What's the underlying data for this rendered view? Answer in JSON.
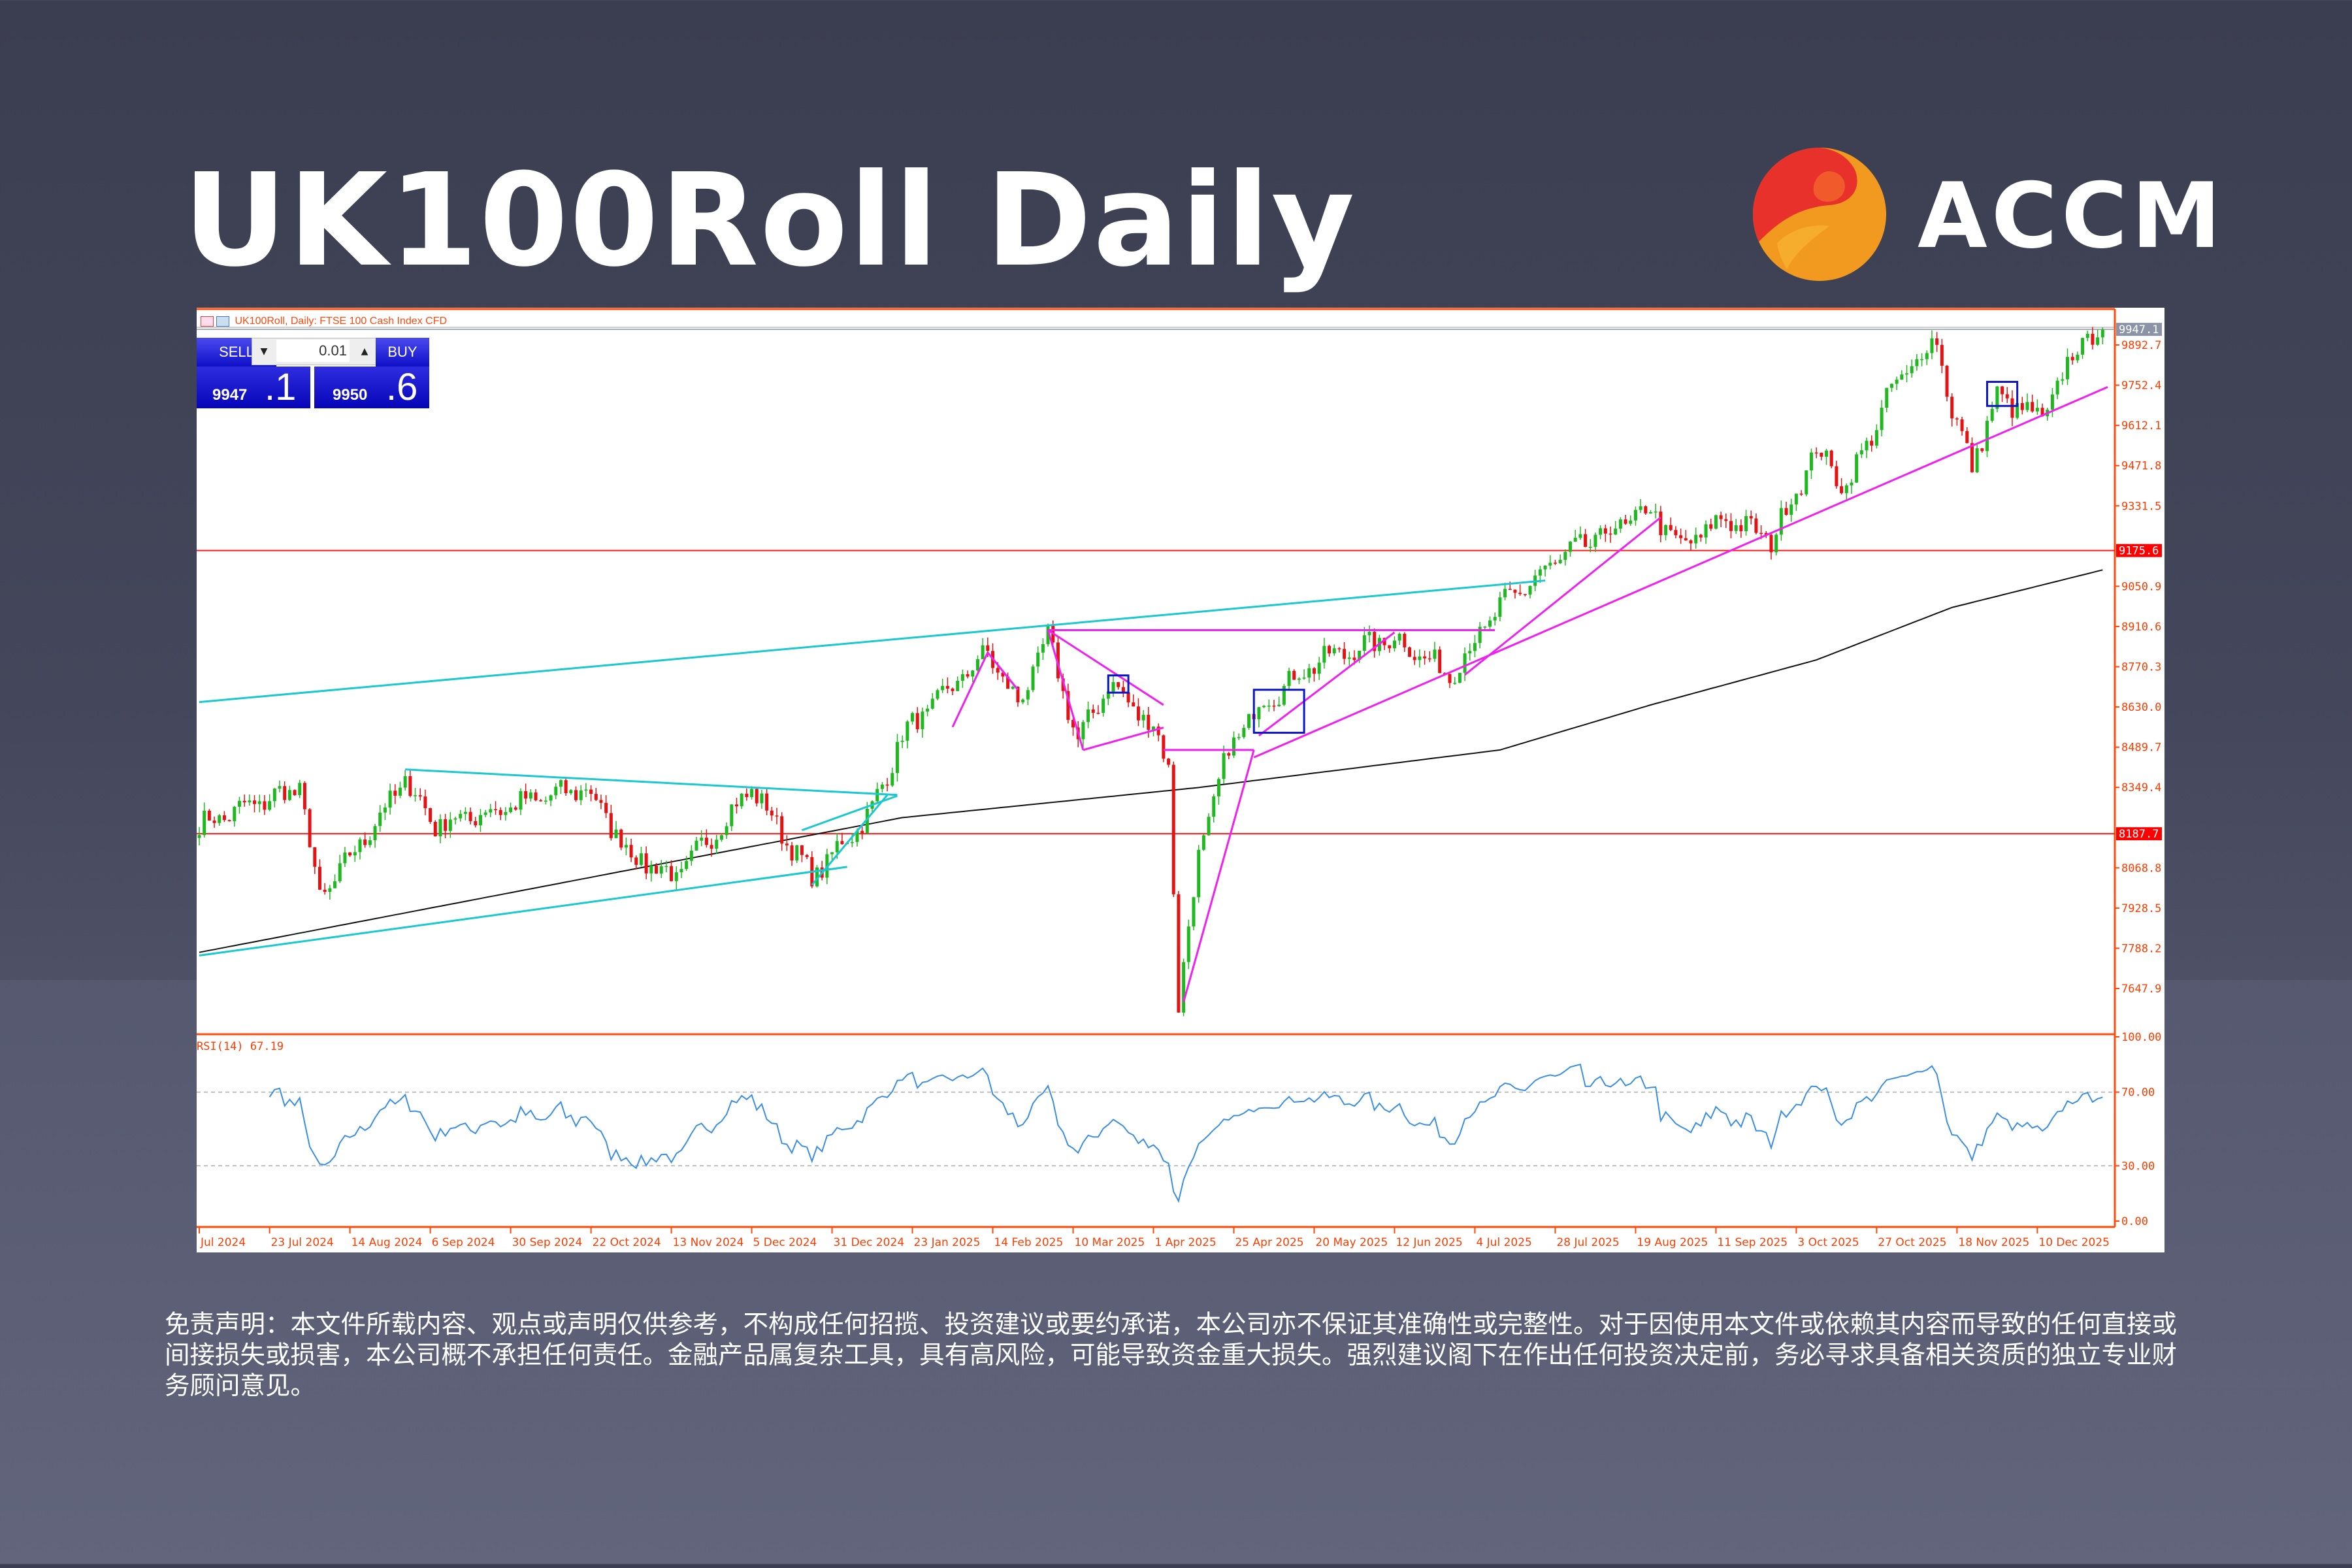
{
  "header": {
    "title": "UK100Roll Daily",
    "brand": "ACCM"
  },
  "chart_header": {
    "caption": "UK100Roll, Daily:  FTSE 100 Cash Index CFD"
  },
  "trade_panel": {
    "sell_label": "SELL",
    "buy_label": "BUY",
    "lot_value": "0.01",
    "bid_main": "9947",
    "bid_frac": ".1",
    "ask_main": "9950",
    "ask_frac": ".6"
  },
  "colors": {
    "up": "#1fb81f",
    "down": "#e41212",
    "ma": "#111111",
    "cyan": "#19c8d0",
    "magenta": "#f020f0",
    "hline": "#ff1a1a",
    "rsi": "#3a8ee6",
    "axis": "#ff4a0a"
  },
  "chart_data": [
    {
      "type": "candlestick",
      "title": "UK100Roll, Daily",
      "bars": 380,
      "ylim": [
        7577.6,
        10033
      ],
      "y_ticks": [
        "9892.7",
        "9752.4",
        "9612.1",
        "9471.8",
        "9331.5",
        "9050.9",
        "8910.6",
        "8770.3",
        "8630.0",
        "8489.7",
        "8349.4",
        "8068.8",
        "7928.5",
        "7788.2",
        "7647.9"
      ],
      "current_price_label": "9947.1",
      "current_price": 9947.1,
      "hlines": [
        {
          "price": 9175.6,
          "label": "9175.6"
        },
        {
          "price": 8187.7,
          "label": "8187.7"
        }
      ],
      "close_path": [
        [
          0,
          8218
        ],
        [
          20,
          8349
        ],
        [
          24,
          7956
        ],
        [
          41,
          8375
        ],
        [
          47,
          8218
        ],
        [
          77,
          8349
        ],
        [
          86,
          8113
        ],
        [
          95,
          8035
        ],
        [
          110,
          8349
        ],
        [
          122,
          8035
        ],
        [
          134,
          8270
        ],
        [
          140,
          8532
        ],
        [
          157,
          8820
        ],
        [
          163,
          8637
        ],
        [
          169,
          8872
        ],
        [
          175,
          8506
        ],
        [
          181,
          8715
        ],
        [
          190,
          8558
        ],
        [
          193,
          8427
        ],
        [
          195,
          7590
        ],
        [
          199,
          8113
        ],
        [
          205,
          8480
        ],
        [
          211,
          8637
        ],
        [
          223,
          8794
        ],
        [
          238,
          8872
        ],
        [
          249,
          8742
        ],
        [
          259,
          8977
        ],
        [
          271,
          9150
        ],
        [
          289,
          9317
        ],
        [
          295,
          9186
        ],
        [
          304,
          9291
        ],
        [
          313,
          9212
        ],
        [
          322,
          9527
        ],
        [
          328,
          9396
        ],
        [
          337,
          9736
        ],
        [
          346,
          9919
        ],
        [
          349,
          9657
        ],
        [
          353,
          9474
        ],
        [
          358,
          9710
        ],
        [
          367,
          9631
        ],
        [
          374,
          9893
        ],
        [
          379,
          9945
        ]
      ],
      "moving_average": {
        "name": "MA",
        "points": [
          [
            0,
            7774
          ],
          [
            140,
            8244
          ],
          [
            199,
            8349
          ],
          [
            259,
            8480
          ],
          [
            289,
            8637
          ],
          [
            322,
            8794
          ],
          [
            349,
            8977
          ],
          [
            379,
            9108
          ]
        ]
      },
      "trendlines": [
        {
          "color": "cyan",
          "from": [
            0,
            8647
          ],
          "to": [
            268,
            9071
          ]
        },
        {
          "color": "cyan",
          "from": [
            0,
            7763
          ],
          "to": [
            129,
            8072
          ]
        },
        {
          "color": "cyan",
          "from": [
            41,
            8412
          ],
          "to": [
            139,
            8323
          ]
        },
        {
          "color": "cyan",
          "from": [
            122,
            8009
          ],
          "to": [
            137,
            8323
          ]
        },
        {
          "color": "cyan",
          "from": [
            120,
            8200
          ],
          "to": [
            139,
            8320
          ]
        },
        {
          "color": "magenta",
          "from": [
            169,
            8898
          ],
          "to": [
            258,
            8898
          ]
        },
        {
          "color": "magenta",
          "from": [
            192,
            8480
          ],
          "to": [
            210,
            8480
          ]
        },
        {
          "color": "magenta",
          "from": [
            196,
            7601
          ],
          "to": [
            210,
            8480
          ]
        },
        {
          "color": "magenta",
          "from": [
            210,
            8454
          ],
          "to": [
            380,
            9746
          ]
        },
        {
          "color": "magenta",
          "from": [
            169,
            8898
          ],
          "to": [
            192,
            8637
          ]
        },
        {
          "color": "magenta",
          "from": [
            169,
            8898
          ],
          "to": [
            176,
            8480
          ]
        },
        {
          "color": "magenta",
          "from": [
            176,
            8480
          ],
          "to": [
            192,
            8558
          ]
        },
        {
          "color": "magenta",
          "from": [
            150,
            8560
          ],
          "to": [
            157,
            8820
          ]
        },
        {
          "color": "magenta",
          "from": [
            157,
            8820
          ],
          "to": [
            163,
            8690
          ]
        },
        {
          "color": "magenta",
          "from": [
            211,
            8530
          ],
          "to": [
            238,
            8890
          ]
        },
        {
          "color": "magenta",
          "from": [
            252,
            8742
          ],
          "to": [
            291,
            9291
          ]
        }
      ],
      "boxes": [
        [
          210,
          8690,
          220,
          8540
        ],
        [
          356,
          9764,
          362,
          9680
        ],
        [
          181,
          8740,
          185,
          8680
        ]
      ]
    },
    {
      "type": "line",
      "title": "RSI(14) 67.19",
      "ylim": [
        0,
        100
      ],
      "y_ticks": [
        "100.00",
        "70.00",
        "30.00",
        "0.00"
      ],
      "levels": [
        70,
        30
      ],
      "last_value": 67.19
    }
  ],
  "x_axis": {
    "labels": [
      "Jul 2024",
      "23 Jul 2024",
      "14 Aug 2024",
      "6 Sep 2024",
      "30 Sep 2024",
      "22 Oct 2024",
      "13 Nov 2024",
      "5 Dec 2024",
      "31 Dec 2024",
      "23 Jan 2025",
      "14 Feb 2025",
      "10 Mar 2025",
      "1 Apr 2025",
      "25 Apr 2025",
      "20 May 2025",
      "12 Jun 2025",
      "4 Jul 2025",
      "28 Jul 2025",
      "19 Aug 2025",
      "11 Sep 2025",
      "3 Oct 2025",
      "27 Oct 2025",
      "18 Nov 2025",
      "10 Dec 2025"
    ]
  },
  "disclaimer": "免责声明：本文件所载内容、观点或声明仅供参考，不构成任何招揽、投资建议或要约承诺，本公司亦不保证其准确性或完整性。对于因使用本文件或依赖其内容而导致的任何直接或间接损失或损害，本公司概不承担任何责任。金融产品属复杂工具，具有高风险，可能导致资金重大损失。强烈建议阁下在作出任何投资决定前，务必寻求具备相关资质的独立专业财务顾问意见。"
}
